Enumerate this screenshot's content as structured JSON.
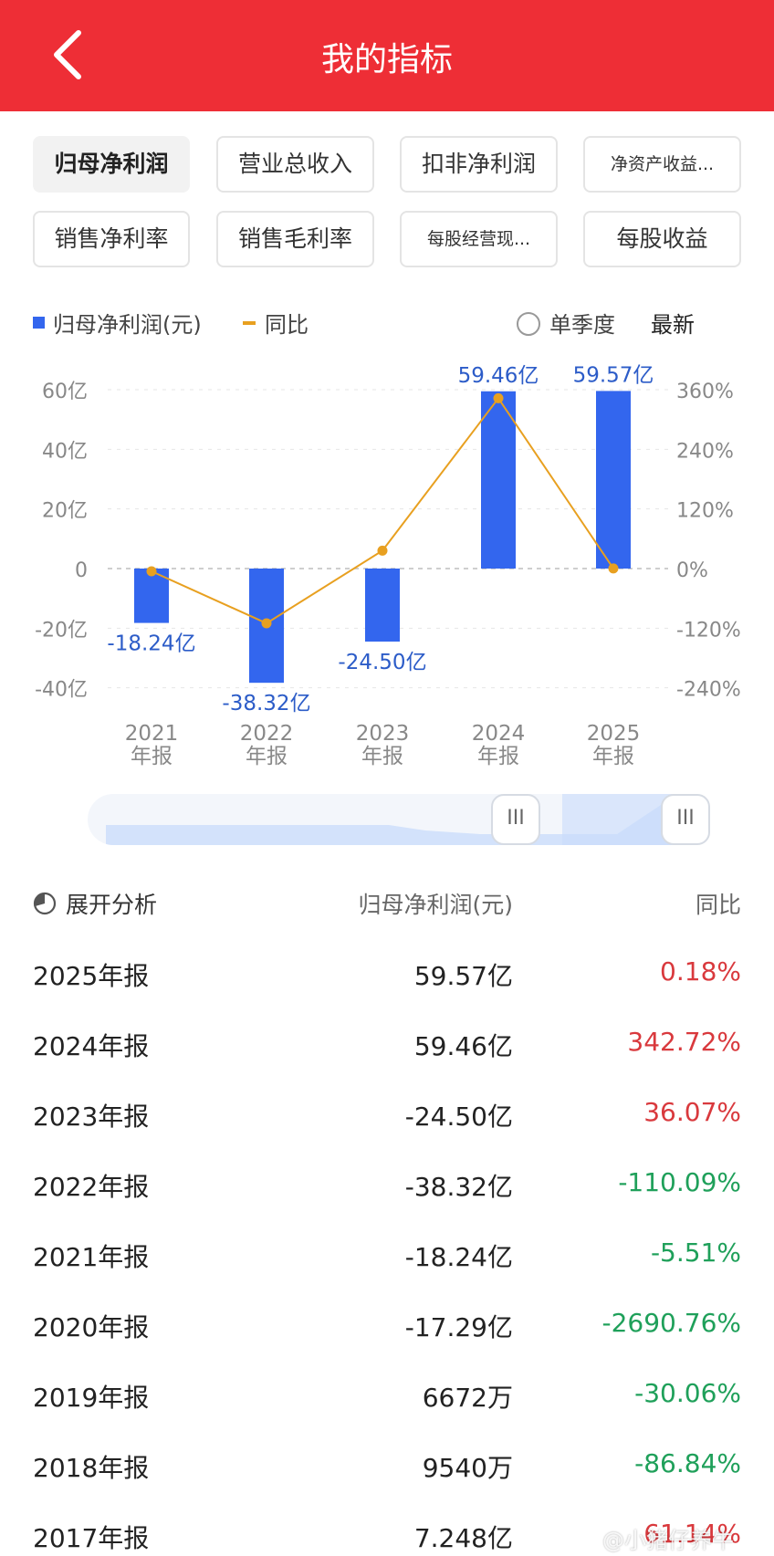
{
  "header": {
    "title": "我的指标",
    "back_icon": "chevron-left-icon"
  },
  "tabs": [
    {
      "label": "归母净利润",
      "active": true
    },
    {
      "label": "营业总收入",
      "active": false
    },
    {
      "label": "扣非净利润",
      "active": false
    },
    {
      "label": "净资产收益...",
      "active": false
    },
    {
      "label": "销售净利率",
      "active": false
    },
    {
      "label": "销售毛利率",
      "active": false
    },
    {
      "label": "每股经营现...",
      "active": false
    },
    {
      "label": "每股收益",
      "active": false
    }
  ],
  "legend": {
    "bar_label": "归母净利润(元)",
    "line_label": "同比",
    "single_quarter": "单季度",
    "latest": "最新"
  },
  "chart_data": {
    "type": "bar",
    "categories": [
      "2021年报",
      "2022年报",
      "2023年报",
      "2024年报",
      "2025年报"
    ],
    "category_lines": [
      [
        "2021",
        "年报"
      ],
      [
        "2022",
        "年报"
      ],
      [
        "2023",
        "年报"
      ],
      [
        "2024",
        "年报"
      ],
      [
        "2025",
        "年报"
      ]
    ],
    "series": [
      {
        "name": "归母净利润(元)",
        "type": "bar",
        "axis": "left",
        "color": "#3366ee",
        "values": [
          -18.24,
          -38.32,
          -24.5,
          59.46,
          59.57
        ],
        "labels": [
          "-18.24亿",
          "-38.32亿",
          "-24.50亿",
          "59.46亿",
          "59.57亿"
        ]
      },
      {
        "name": "同比",
        "type": "line",
        "axis": "right",
        "color": "#e8a020",
        "values": [
          -5.51,
          -110.09,
          36.07,
          342.72,
          0.18
        ]
      }
    ],
    "y_left": {
      "min": -40,
      "max": 60,
      "ticks": [
        60,
        40,
        20,
        0,
        -20,
        -40
      ],
      "tick_labels": [
        "60亿",
        "40亿",
        "20亿",
        "0",
        "-20亿",
        "-40亿"
      ]
    },
    "y_right": {
      "min": -240,
      "max": 360,
      "ticks": [
        360,
        240,
        120,
        0,
        -120,
        -240
      ],
      "tick_labels": [
        "360%",
        "240%",
        "120%",
        "0%",
        "-120%",
        "-240%"
      ]
    },
    "grid": true
  },
  "slider": {
    "handle_glyph": "III"
  },
  "table": {
    "expand_label": "展开分析",
    "expand_icon": "pie-chart-icon",
    "col_value": "归母净利润(元)",
    "col_yoy": "同比",
    "positive_color": "#d9393d",
    "negative_color": "#1fa05a",
    "rows": [
      {
        "period": "2025年报",
        "value": "59.57亿",
        "yoy": "0.18%",
        "up": true
      },
      {
        "period": "2024年报",
        "value": "59.46亿",
        "yoy": "342.72%",
        "up": true
      },
      {
        "period": "2023年报",
        "value": "-24.50亿",
        "yoy": "36.07%",
        "up": true
      },
      {
        "period": "2022年报",
        "value": "-38.32亿",
        "yoy": "-110.09%",
        "up": false
      },
      {
        "period": "2021年报",
        "value": "-18.24亿",
        "yoy": "-5.51%",
        "up": false
      },
      {
        "period": "2020年报",
        "value": "-17.29亿",
        "yoy": "-2690.76%",
        "up": false
      },
      {
        "period": "2019年报",
        "value": "6672万",
        "yoy": "-30.06%",
        "up": false
      },
      {
        "period": "2018年报",
        "value": "9540万",
        "yoy": "-86.84%",
        "up": false
      },
      {
        "period": "2017年报",
        "value": "7.248亿",
        "yoy": "61.14%",
        "up": true
      }
    ]
  },
  "watermark": "@小猪仔养牛"
}
